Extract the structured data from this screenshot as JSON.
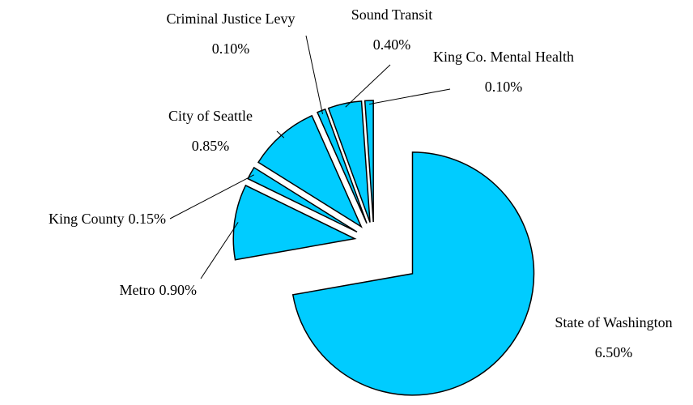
{
  "chart_data": {
    "type": "pie",
    "categories": [
      "State of Washington",
      "Metro",
      "King County",
      "City of Seattle",
      "Criminal Justice Levy",
      "Sound Transit",
      "King Co. Mental Health"
    ],
    "values": [
      6.5,
      0.9,
      0.15,
      0.85,
      0.1,
      0.4,
      0.1
    ],
    "value_labels": [
      "6.50%",
      "0.90%",
      "0.15%",
      "0.85%",
      "0.10%",
      "0.40%",
      "0.10%"
    ],
    "color": "#00ccff"
  }
}
